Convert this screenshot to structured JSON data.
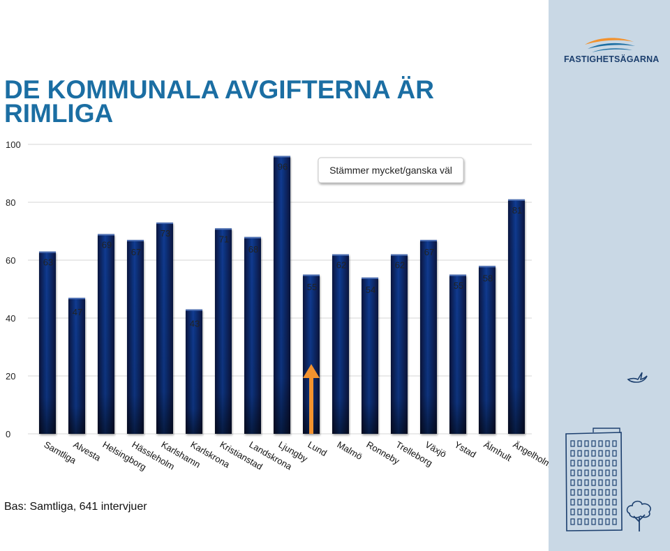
{
  "page": {
    "title": "DE KOMMUNALA AVGIFTERNA ÄR RIMLIGA",
    "footnote": "Bas: Samtliga, 641 intervjuer",
    "brand": "FASTIGHETSÄGARNA"
  },
  "colors": {
    "bar": "#0d2f7a",
    "arrow": "#f2922e",
    "title": "#1b6ea3",
    "sidebar": "#c9d8e5"
  },
  "icons": [
    "bird-icon",
    "building-icon",
    "tree-icon",
    "logo-icon",
    "arrow-icon"
  ],
  "chart_data": {
    "type": "bar",
    "categories": [
      "Samtliga",
      "Alvesta",
      "Helsingborg",
      "Hässleholm",
      "Karlshamn",
      "Karlskrona",
      "Kristianstad",
      "Landskrona",
      "Ljungby",
      "Lund",
      "Malmö",
      "Ronneby",
      "Trelleborg",
      "Växjö",
      "Ystad",
      "Älmhult",
      "Ängelholm"
    ],
    "series": [
      {
        "name": "Stämmer mycket/ganska väl",
        "values": [
          63,
          47,
          69,
          67,
          73,
          43,
          71,
          68,
          96,
          55,
          62,
          54,
          62,
          67,
          55,
          58,
          81
        ]
      }
    ],
    "ylim": [
      0,
      100
    ],
    "yticks": [
      0,
      20,
      40,
      60,
      80,
      100
    ],
    "grid": true,
    "legend": "top-center",
    "highlight_category": "Lund"
  }
}
